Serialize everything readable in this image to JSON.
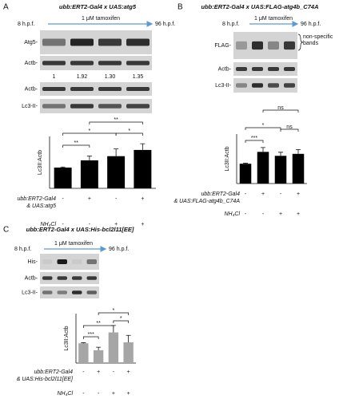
{
  "panels": [
    {
      "letter": "A",
      "title": "ubb:ERT2-Gal4 x UAS:atg5",
      "start": "8 h.p.f.",
      "treatment": "1 μM tamoxifen",
      "end": "96 h.p.f.",
      "blots": [
        "Atg5-",
        "Actb-",
        "Actb-",
        "Lc3-II-"
      ],
      "quantification": [
        "1",
        "1.92",
        "1.30",
        "1.35"
      ]
    },
    {
      "letter": "B",
      "title": "ubb:ERT2-Gal4 x UAS:FLAG-atg4b_C74A",
      "start": "8 h.p.f.",
      "treatment": "1 μM tamoxifen",
      "end": "96 h.p.f.",
      "blots": [
        "FLAG-",
        "Actb-",
        "Lc3-II-"
      ],
      "note": [
        "non-specific",
        "bands"
      ]
    },
    {
      "letter": "C",
      "title": "ubb:ERT2-Gal4 x UAS:His-bcl2l11[EE]",
      "start": "8 h.p.f.",
      "treatment": "1 μM tamoxifen",
      "end": "96 h.p.f.",
      "blots": [
        "His-",
        "Actb-",
        "Lc3-II-"
      ]
    }
  ],
  "chart_data": [
    {
      "type": "bar",
      "ylabel": "Lc3II:Actb",
      "values": [
        1.0,
        1.35,
        1.55,
        1.85
      ],
      "errors": [
        0.03,
        0.2,
        0.35,
        0.3
      ],
      "color": "#000000",
      "ylim": [
        0,
        2.5
      ],
      "significance": [
        {
          "from": 0,
          "to": 1,
          "label": "**"
        },
        {
          "from": 0,
          "to": 2,
          "label": "*"
        },
        {
          "from": 1,
          "to": 3,
          "label": "**"
        },
        {
          "from": 2,
          "to": 3,
          "label": "*"
        }
      ],
      "conditions": [
        {
          "label": [
            "ubb:ERT2-Gal4",
            "& UAS:atg5"
          ],
          "marks": [
            "-",
            "+",
            "-",
            "+"
          ]
        },
        {
          "label": [
            "NH₄Cl"
          ],
          "marks": [
            "-",
            "-",
            "+",
            "+"
          ]
        }
      ]
    },
    {
      "type": "bar",
      "ylabel": "Lc3II:Actb",
      "values": [
        1.0,
        1.6,
        1.4,
        1.5
      ],
      "errors": [
        0.03,
        0.22,
        0.18,
        0.22
      ],
      "color": "#000000",
      "ylim": [
        0,
        2.5
      ],
      "significance": [
        {
          "from": 0,
          "to": 1,
          "label": "***"
        },
        {
          "from": 0,
          "to": 2,
          "label": "*"
        },
        {
          "from": 1,
          "to": 3,
          "label": "ns"
        },
        {
          "from": 2,
          "to": 3,
          "label": "ns"
        }
      ],
      "conditions": [
        {
          "label": [
            "ubb:ERT2-Gal4",
            "& UAS:FLAG-atg4b_C74A"
          ],
          "marks": [
            "-",
            "+",
            "-",
            "+"
          ]
        },
        {
          "label": [
            "NH₄Cl"
          ],
          "marks": [
            "-",
            "-",
            "+",
            "+"
          ]
        }
      ]
    },
    {
      "type": "bar",
      "ylabel": "Lc3II:Actb",
      "values": [
        1.0,
        0.65,
        1.55,
        1.05
      ],
      "errors": [
        0.03,
        0.15,
        0.35,
        0.35
      ],
      "color": "#a6a6a6",
      "ylim": [
        0,
        2.5
      ],
      "significance": [
        {
          "from": 0,
          "to": 1,
          "label": "***"
        },
        {
          "from": 0,
          "to": 2,
          "label": "**"
        },
        {
          "from": 1,
          "to": 3,
          "label": "*"
        },
        {
          "from": 2,
          "to": 3,
          "label": "*"
        }
      ],
      "conditions": [
        {
          "label": [
            "ubb:ERT2-Gal4",
            "& UAS:His-bcl2l11[EE]"
          ],
          "marks": [
            "-",
            "+",
            "-",
            "+"
          ]
        },
        {
          "label": [
            "NH₄Cl"
          ],
          "marks": [
            "-",
            "-",
            "+",
            "+"
          ]
        }
      ]
    }
  ]
}
